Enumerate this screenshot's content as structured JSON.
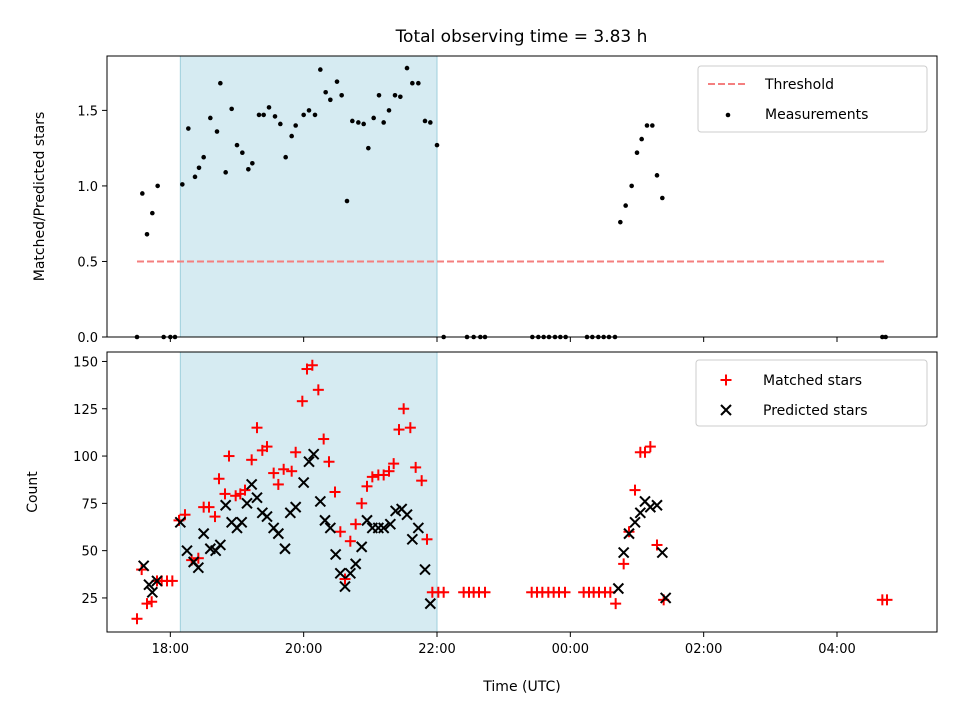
{
  "title": "Total observing time = 3.83 h",
  "colors": {
    "threshold": "#f47f7f",
    "measurement": "#000000",
    "matched": "#ff0000",
    "predicted": "#000000",
    "shade": "#add8e6"
  },
  "chart_data": [
    {
      "type": "scatter",
      "ylabel": "Matched/Predicted stars",
      "xlabel": "",
      "xlim": [
        17.05,
        29.5
      ],
      "ylim": [
        0.0,
        1.86
      ],
      "yticks": [
        0.0,
        0.5,
        1.0,
        1.5
      ],
      "ytick_labels": [
        "0.0",
        "0.5",
        "1.0",
        "1.5"
      ],
      "shaded_span": [
        18.15,
        22.0
      ],
      "legend_position": "top-right",
      "threshold": {
        "name": "Threshold",
        "y": 0.5,
        "x_range": [
          17.5,
          28.75
        ]
      },
      "series": [
        {
          "name": "Measurements",
          "points": [
            [
              17.5,
              0.0
            ],
            [
              17.58,
              0.95
            ],
            [
              17.65,
              0.68
            ],
            [
              17.73,
              0.82
            ],
            [
              17.81,
              1.0
            ],
            [
              17.9,
              0.0
            ],
            [
              18.0,
              0.0
            ],
            [
              18.07,
              0.0
            ],
            [
              18.18,
              1.01
            ],
            [
              18.27,
              1.38
            ],
            [
              18.37,
              1.06
            ],
            [
              18.43,
              1.12
            ],
            [
              18.5,
              1.19
            ],
            [
              18.6,
              1.45
            ],
            [
              18.7,
              1.36
            ],
            [
              18.75,
              1.68
            ],
            [
              18.83,
              1.09
            ],
            [
              18.92,
              1.51
            ],
            [
              19.0,
              1.27
            ],
            [
              19.08,
              1.22
            ],
            [
              19.17,
              1.11
            ],
            [
              19.23,
              1.15
            ],
            [
              19.33,
              1.47
            ],
            [
              19.4,
              1.47
            ],
            [
              19.48,
              1.52
            ],
            [
              19.57,
              1.46
            ],
            [
              19.65,
              1.41
            ],
            [
              19.73,
              1.19
            ],
            [
              19.82,
              1.33
            ],
            [
              19.88,
              1.4
            ],
            [
              20.0,
              1.47
            ],
            [
              20.08,
              1.5
            ],
            [
              20.17,
              1.47
            ],
            [
              20.25,
              1.77
            ],
            [
              20.33,
              1.62
            ],
            [
              20.4,
              1.57
            ],
            [
              20.5,
              1.69
            ],
            [
              20.57,
              1.6
            ],
            [
              20.65,
              0.9
            ],
            [
              20.73,
              1.43
            ],
            [
              20.82,
              1.42
            ],
            [
              20.9,
              1.41
            ],
            [
              20.97,
              1.25
            ],
            [
              21.05,
              1.45
            ],
            [
              21.13,
              1.6
            ],
            [
              21.2,
              1.42
            ],
            [
              21.28,
              1.5
            ],
            [
              21.37,
              1.6
            ],
            [
              21.45,
              1.59
            ],
            [
              21.55,
              1.78
            ],
            [
              21.63,
              1.68
            ],
            [
              21.72,
              1.68
            ],
            [
              21.82,
              1.43
            ],
            [
              21.9,
              1.42
            ],
            [
              22.0,
              1.27
            ],
            [
              22.1,
              0.0
            ],
            [
              22.45,
              0.0
            ],
            [
              22.55,
              0.0
            ],
            [
              22.65,
              0.0
            ],
            [
              22.72,
              0.0
            ],
            [
              23.43,
              0.0
            ],
            [
              23.52,
              0.0
            ],
            [
              23.6,
              0.0
            ],
            [
              23.68,
              0.0
            ],
            [
              23.77,
              0.0
            ],
            [
              23.85,
              0.0
            ],
            [
              23.93,
              0.0
            ],
            [
              24.25,
              0.0
            ],
            [
              24.33,
              0.0
            ],
            [
              24.42,
              0.0
            ],
            [
              24.5,
              0.0
            ],
            [
              24.58,
              0.0
            ],
            [
              24.67,
              0.0
            ],
            [
              24.75,
              0.76
            ],
            [
              24.83,
              0.87
            ],
            [
              24.92,
              1.0
            ],
            [
              25.0,
              1.22
            ],
            [
              25.07,
              1.31
            ],
            [
              25.15,
              1.4
            ],
            [
              25.23,
              1.4
            ],
            [
              25.3,
              1.07
            ],
            [
              25.38,
              0.92
            ],
            [
              28.68,
              0.0
            ],
            [
              28.73,
              0.0
            ]
          ]
        }
      ]
    },
    {
      "type": "scatter",
      "ylabel": "Count",
      "xlabel": "Time (UTC)",
      "xlim": [
        17.05,
        29.5
      ],
      "ylim": [
        7,
        155
      ],
      "yticks": [
        25,
        50,
        75,
        100,
        125,
        150
      ],
      "ytick_labels": [
        "25",
        "50",
        "75",
        "100",
        "125",
        "150"
      ],
      "xticks": [
        18,
        20,
        22,
        24,
        26,
        28
      ],
      "xtick_labels": [
        "18:00",
        "20:00",
        "22:00",
        "00:00",
        "02:00",
        "04:00"
      ],
      "shaded_span": [
        18.15,
        22.0
      ],
      "legend_position": "top-right",
      "series": [
        {
          "name": "Matched stars",
          "marker": "plus",
          "points": [
            [
              17.5,
              14
            ],
            [
              17.57,
              40
            ],
            [
              17.65,
              22
            ],
            [
              17.72,
              23
            ],
            [
              17.8,
              34
            ],
            [
              17.87,
              34
            ],
            [
              17.95,
              34
            ],
            [
              18.03,
              34
            ],
            [
              18.13,
              66
            ],
            [
              18.22,
              69
            ],
            [
              18.32,
              45
            ],
            [
              18.42,
              46
            ],
            [
              18.5,
              73
            ],
            [
              18.58,
              73
            ],
            [
              18.67,
              68
            ],
            [
              18.73,
              88
            ],
            [
              18.82,
              80
            ],
            [
              18.88,
              100
            ],
            [
              18.98,
              79
            ],
            [
              19.05,
              80
            ],
            [
              19.12,
              82
            ],
            [
              19.22,
              98
            ],
            [
              19.3,
              115
            ],
            [
              19.38,
              103
            ],
            [
              19.45,
              105
            ],
            [
              19.55,
              91
            ],
            [
              19.62,
              85
            ],
            [
              19.7,
              93
            ],
            [
              19.82,
              92
            ],
            [
              19.88,
              102
            ],
            [
              19.98,
              129
            ],
            [
              20.05,
              146
            ],
            [
              20.13,
              148
            ],
            [
              20.22,
              135
            ],
            [
              20.3,
              109
            ],
            [
              20.38,
              97
            ],
            [
              20.47,
              81
            ],
            [
              20.55,
              60
            ],
            [
              20.62,
              35
            ],
            [
              20.7,
              55
            ],
            [
              20.78,
              64
            ],
            [
              20.87,
              75
            ],
            [
              20.95,
              84
            ],
            [
              21.03,
              89
            ],
            [
              21.12,
              90
            ],
            [
              21.2,
              90
            ],
            [
              21.28,
              92
            ],
            [
              21.35,
              96
            ],
            [
              21.43,
              114
            ],
            [
              21.5,
              125
            ],
            [
              21.6,
              115
            ],
            [
              21.68,
              94
            ],
            [
              21.77,
              87
            ],
            [
              21.85,
              56
            ],
            [
              21.93,
              28
            ],
            [
              22.02,
              28
            ],
            [
              22.1,
              28
            ],
            [
              22.4,
              28
            ],
            [
              22.48,
              28
            ],
            [
              22.55,
              28
            ],
            [
              22.63,
              28
            ],
            [
              22.72,
              28
            ],
            [
              23.42,
              28
            ],
            [
              23.5,
              28
            ],
            [
              23.58,
              28
            ],
            [
              23.67,
              28
            ],
            [
              23.75,
              28
            ],
            [
              23.83,
              28
            ],
            [
              23.92,
              28
            ],
            [
              24.2,
              28
            ],
            [
              24.28,
              28
            ],
            [
              24.35,
              28
            ],
            [
              24.43,
              28
            ],
            [
              24.52,
              28
            ],
            [
              24.6,
              28
            ],
            [
              24.68,
              22
            ],
            [
              24.8,
              43
            ],
            [
              24.88,
              60
            ],
            [
              24.97,
              82
            ],
            [
              25.05,
              102
            ],
            [
              25.12,
              102
            ],
            [
              25.2,
              105
            ],
            [
              25.3,
              53
            ],
            [
              25.4,
              24
            ],
            [
              28.68,
              24
            ],
            [
              28.75,
              24
            ]
          ]
        },
        {
          "name": "Predicted stars",
          "marker": "x",
          "points": [
            [
              17.6,
              42
            ],
            [
              17.68,
              32
            ],
            [
              17.73,
              28
            ],
            [
              17.8,
              34
            ],
            [
              18.15,
              65
            ],
            [
              18.25,
              50
            ],
            [
              18.35,
              44
            ],
            [
              18.42,
              41
            ],
            [
              18.5,
              59
            ],
            [
              18.6,
              51
            ],
            [
              18.68,
              50
            ],
            [
              18.75,
              53
            ],
            [
              18.83,
              74
            ],
            [
              18.92,
              65
            ],
            [
              19.0,
              62
            ],
            [
              19.07,
              65
            ],
            [
              19.15,
              75
            ],
            [
              19.22,
              85
            ],
            [
              19.3,
              78
            ],
            [
              19.38,
              70
            ],
            [
              19.45,
              68
            ],
            [
              19.55,
              62
            ],
            [
              19.62,
              59
            ],
            [
              19.72,
              51
            ],
            [
              19.8,
              70
            ],
            [
              19.88,
              73
            ],
            [
              20.0,
              86
            ],
            [
              20.08,
              97
            ],
            [
              20.15,
              101
            ],
            [
              20.25,
              76
            ],
            [
              20.32,
              66
            ],
            [
              20.4,
              62
            ],
            [
              20.48,
              48
            ],
            [
              20.55,
              38
            ],
            [
              20.62,
              31
            ],
            [
              20.7,
              38
            ],
            [
              20.78,
              43
            ],
            [
              20.87,
              52
            ],
            [
              20.95,
              66
            ],
            [
              21.03,
              62
            ],
            [
              21.12,
              62
            ],
            [
              21.2,
              62
            ],
            [
              21.3,
              64
            ],
            [
              21.38,
              71
            ],
            [
              21.47,
              72
            ],
            [
              21.55,
              69
            ],
            [
              21.63,
              56
            ],
            [
              21.72,
              62
            ],
            [
              21.82,
              40
            ],
            [
              21.9,
              22
            ],
            [
              24.72,
              30
            ],
            [
              24.8,
              49
            ],
            [
              24.88,
              59
            ],
            [
              24.97,
              65
            ],
            [
              25.05,
              70
            ],
            [
              25.12,
              76
            ],
            [
              25.2,
              73
            ],
            [
              25.3,
              74
            ],
            [
              25.38,
              49
            ],
            [
              25.43,
              25
            ]
          ]
        }
      ]
    }
  ]
}
